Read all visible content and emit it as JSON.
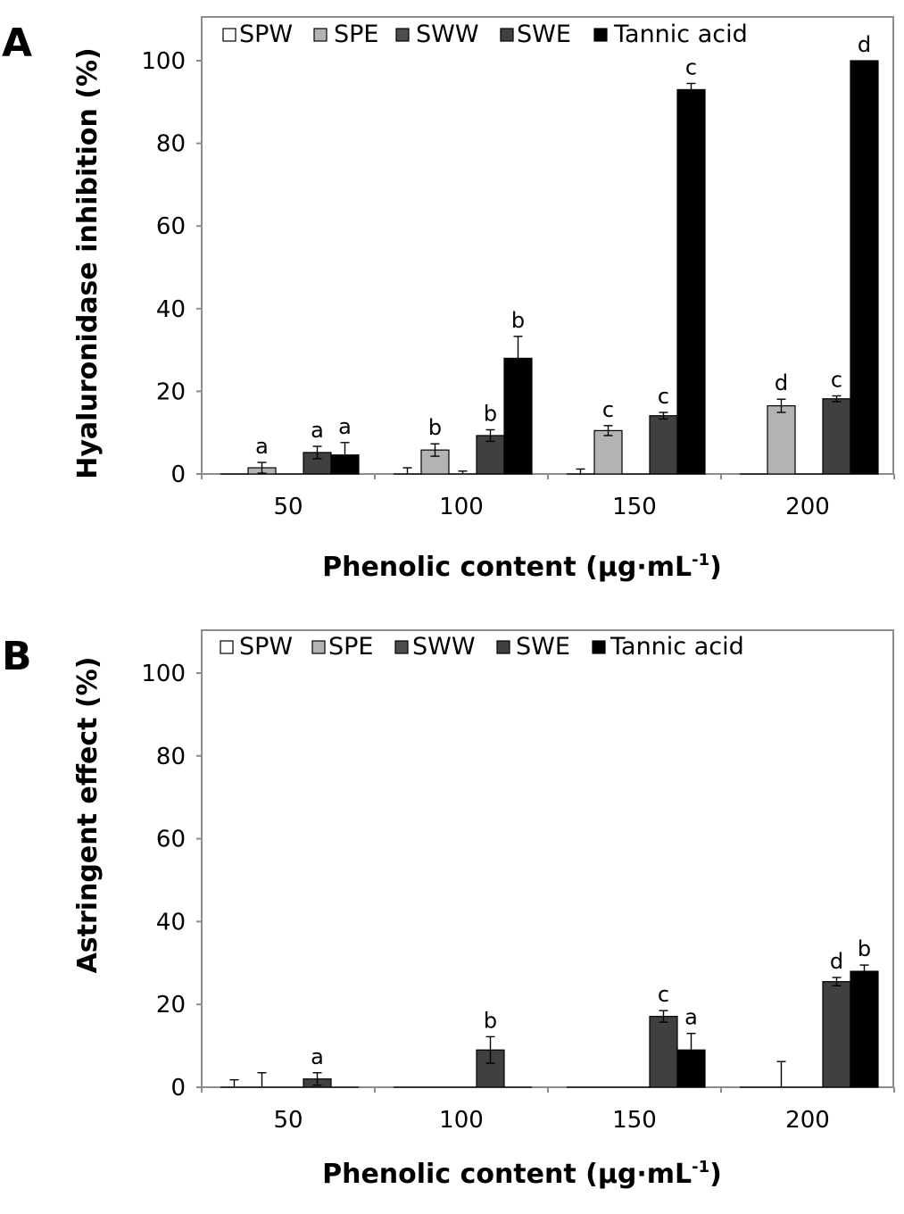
{
  "chart_data": [
    {
      "panel_label": "A",
      "type": "bar",
      "xlabel_main": "Phenolic content (μg·mL",
      "xlabel_sup": "-1",
      "xlabel_close": ")",
      "ylabel": "Hyaluronidase inhibition (%)",
      "ylim": [
        0,
        110
      ],
      "yticks": [
        0,
        20,
        40,
        60,
        80,
        100
      ],
      "grid": false,
      "legend_position": "top",
      "categories": [
        "50",
        "100",
        "150",
        "200"
      ],
      "series": [
        {
          "name": "SPW",
          "color": "#ffffff",
          "values": [
            0,
            0,
            0,
            0
          ],
          "errors": [
            0,
            1.5,
            1.2,
            0
          ],
          "labels": [
            "",
            "",
            "",
            ""
          ]
        },
        {
          "name": "SPE",
          "color": "#b3b3b3",
          "values": [
            1.5,
            5.8,
            10.5,
            16.5
          ],
          "errors": [
            1.3,
            1.5,
            1.2,
            1.6
          ],
          "labels": [
            "a",
            "b",
            "c",
            "d"
          ]
        },
        {
          "name": "SWW",
          "color": "#4d4d4d",
          "values": [
            0,
            0,
            0,
            0
          ],
          "errors": [
            0,
            0.7,
            0,
            0
          ],
          "labels": [
            "",
            "",
            "",
            ""
          ]
        },
        {
          "name": "SWE",
          "color": "#404040",
          "values": [
            5.2,
            9.3,
            14.1,
            18.2
          ],
          "errors": [
            1.5,
            1.4,
            0.8,
            0.7
          ],
          "labels": [
            "a",
            "b",
            "c",
            "c"
          ]
        },
        {
          "name": "Tannic acid",
          "color": "#000000",
          "values": [
            4.6,
            28.0,
            93.0,
            100.0
          ],
          "errors": [
            3.0,
            5.3,
            1.5,
            0
          ],
          "labels": [
            "a",
            "b",
            "c",
            "d"
          ]
        }
      ]
    },
    {
      "panel_label": "B",
      "type": "bar",
      "xlabel_main": "Phenolic content (μg·mL",
      "xlabel_sup": "-1",
      "xlabel_close": ")",
      "ylabel": "Astringent effect (%)",
      "ylim": [
        0,
        110
      ],
      "yticks": [
        0,
        20,
        40,
        60,
        80,
        100
      ],
      "grid": false,
      "legend_position": "top",
      "categories": [
        "50",
        "100",
        "150",
        "200"
      ],
      "series": [
        {
          "name": "SPW",
          "color": "#ffffff",
          "values": [
            0,
            0,
            0,
            0
          ],
          "errors": [
            1.8,
            0,
            0,
            0
          ],
          "labels": [
            "",
            "",
            "",
            ""
          ]
        },
        {
          "name": "SPE",
          "color": "#b3b3b3",
          "values": [
            0,
            0,
            0,
            0
          ],
          "errors": [
            3.5,
            0,
            0,
            6.2
          ],
          "labels": [
            "",
            "",
            "",
            ""
          ]
        },
        {
          "name": "SWW",
          "color": "#4d4d4d",
          "values": [
            0,
            0,
            0,
            0
          ],
          "errors": [
            0,
            0,
            0,
            0
          ],
          "labels": [
            "",
            "",
            "",
            ""
          ]
        },
        {
          "name": "SWE",
          "color": "#404040",
          "values": [
            2.0,
            9.0,
            17.1,
            25.5
          ],
          "errors": [
            1.5,
            3.2,
            1.4,
            1.0
          ],
          "labels": [
            "a",
            "b",
            "c",
            "d"
          ]
        },
        {
          "name": "Tannic acid",
          "color": "#000000",
          "values": [
            0,
            0,
            9.0,
            28.0
          ],
          "errors": [
            0,
            0,
            4.0,
            1.5
          ],
          "labels": [
            "",
            "",
            "a",
            "b"
          ]
        }
      ]
    }
  ]
}
